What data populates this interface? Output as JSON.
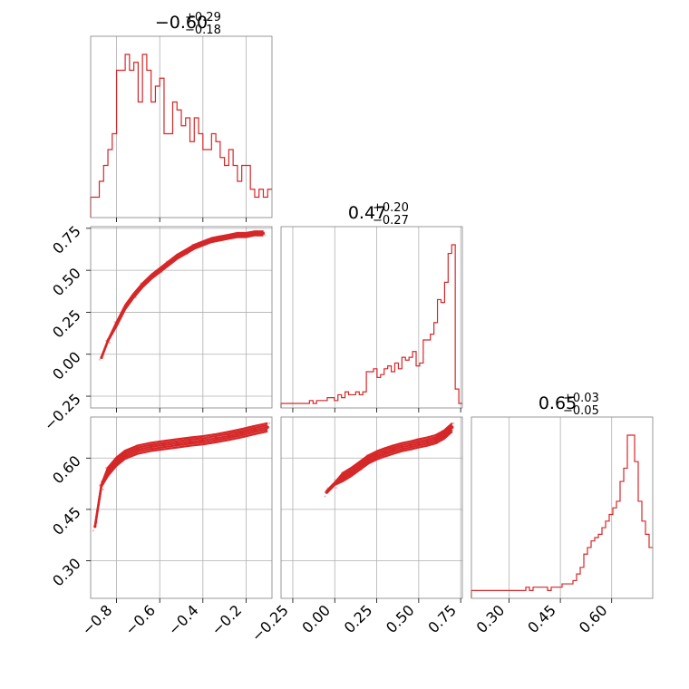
{
  "chart_data": {
    "type": "corner",
    "parameter_titles": [
      {
        "median": "−0.60",
        "plus": "+0.29",
        "minus": "−0.18"
      },
      {
        "median": "0.47",
        "plus": "+0.20",
        "minus": "−0.27"
      },
      {
        "median": "0.65",
        "plus": "+0.03",
        "minus": "−0.05"
      }
    ],
    "axes": [
      {
        "range": [
          -0.92,
          -0.08
        ],
        "ticks": [
          -0.8,
          -0.6,
          -0.4,
          -0.2
        ],
        "tick_labels": [
          "−0.8",
          "−0.6",
          "−0.4",
          "−0.2"
        ]
      },
      {
        "range": [
          -0.32,
          0.76
        ],
        "ticks": [
          -0.25,
          0.0,
          0.25,
          0.5,
          0.75
        ],
        "tick_labels": [
          "−0.25",
          "0.00",
          "0.25",
          "0.50",
          "0.75"
        ]
      },
      {
        "range": [
          0.19,
          0.72
        ],
        "ticks": [
          0.3,
          0.45,
          0.6
        ],
        "tick_labels": [
          "0.30",
          "0.45",
          "0.60"
        ]
      }
    ],
    "hist1": {
      "range": [
        -0.92,
        -0.08
      ],
      "counts": [
        2,
        2,
        4,
        6,
        8,
        10,
        18,
        18,
        20,
        18,
        19,
        14,
        20,
        18,
        14,
        16,
        17,
        10,
        10,
        14,
        13,
        11,
        12,
        9,
        12,
        10,
        8,
        8,
        10,
        9,
        7,
        6,
        8,
        6,
        4,
        6,
        6,
        3,
        2,
        3,
        2,
        3
      ]
    },
    "hist2": {
      "range": [
        -0.32,
        0.76
      ],
      "counts": [
        0,
        0,
        0,
        0,
        0,
        0,
        0,
        0,
        1,
        0,
        1,
        1,
        1,
        2,
        2,
        1,
        3,
        2,
        4,
        3,
        3,
        4,
        3,
        4,
        11,
        11,
        12,
        9,
        10,
        12,
        13,
        11,
        14,
        12,
        16,
        15,
        16,
        18,
        13,
        14,
        22,
        22,
        24,
        28,
        36,
        35,
        42,
        52,
        55,
        5,
        0
      ]
    },
    "hist3": {
      "range": [
        0.19,
        0.72
      ],
      "counts": [
        1,
        1,
        1,
        1,
        1,
        1,
        1,
        1,
        1,
        1,
        1,
        1,
        1,
        1,
        1,
        2,
        1,
        2,
        2,
        2,
        2,
        1,
        2,
        2,
        2,
        3,
        3,
        3,
        4,
        6,
        8,
        12,
        14,
        16,
        17,
        18,
        20,
        22,
        24,
        26,
        28,
        34,
        38,
        48,
        48,
        40,
        28,
        22,
        18,
        14
      ]
    },
    "scatter_21": [
      [
        -0.87,
        -0.02
      ],
      [
        -0.84,
        0.08
      ],
      [
        -0.8,
        0.18
      ],
      [
        -0.76,
        0.28
      ],
      [
        -0.72,
        0.35
      ],
      [
        -0.68,
        0.41
      ],
      [
        -0.64,
        0.46
      ],
      [
        -0.6,
        0.5
      ],
      [
        -0.56,
        0.54
      ],
      [
        -0.52,
        0.58
      ],
      [
        -0.48,
        0.61
      ],
      [
        -0.44,
        0.64
      ],
      [
        -0.4,
        0.66
      ],
      [
        -0.36,
        0.68
      ],
      [
        -0.32,
        0.69
      ],
      [
        -0.28,
        0.7
      ],
      [
        -0.24,
        0.71
      ],
      [
        -0.2,
        0.71
      ],
      [
        -0.16,
        0.72
      ],
      [
        -0.12,
        0.72
      ]
    ],
    "scatter_31": [
      [
        -0.9,
        0.4
      ],
      [
        -0.87,
        0.52
      ],
      [
        -0.84,
        0.56
      ],
      [
        -0.8,
        0.59
      ],
      [
        -0.76,
        0.61
      ],
      [
        -0.7,
        0.625
      ],
      [
        -0.64,
        0.633
      ],
      [
        -0.58,
        0.638
      ],
      [
        -0.52,
        0.643
      ],
      [
        -0.46,
        0.648
      ],
      [
        -0.4,
        0.652
      ],
      [
        -0.34,
        0.658
      ],
      [
        -0.28,
        0.665
      ],
      [
        -0.22,
        0.673
      ],
      [
        -0.16,
        0.682
      ],
      [
        -0.1,
        0.69
      ]
    ],
    "scatter_32": [
      [
        -0.05,
        0.5
      ],
      [
        0.0,
        0.525
      ],
      [
        0.05,
        0.545
      ],
      [
        0.1,
        0.56
      ],
      [
        0.15,
        0.578
      ],
      [
        0.2,
        0.596
      ],
      [
        0.25,
        0.608
      ],
      [
        0.3,
        0.617
      ],
      [
        0.35,
        0.625
      ],
      [
        0.4,
        0.632
      ],
      [
        0.45,
        0.637
      ],
      [
        0.5,
        0.643
      ],
      [
        0.55,
        0.648
      ],
      [
        0.6,
        0.655
      ],
      [
        0.65,
        0.668
      ],
      [
        0.7,
        0.69
      ]
    ],
    "color": "#d62728",
    "grid": true
  }
}
